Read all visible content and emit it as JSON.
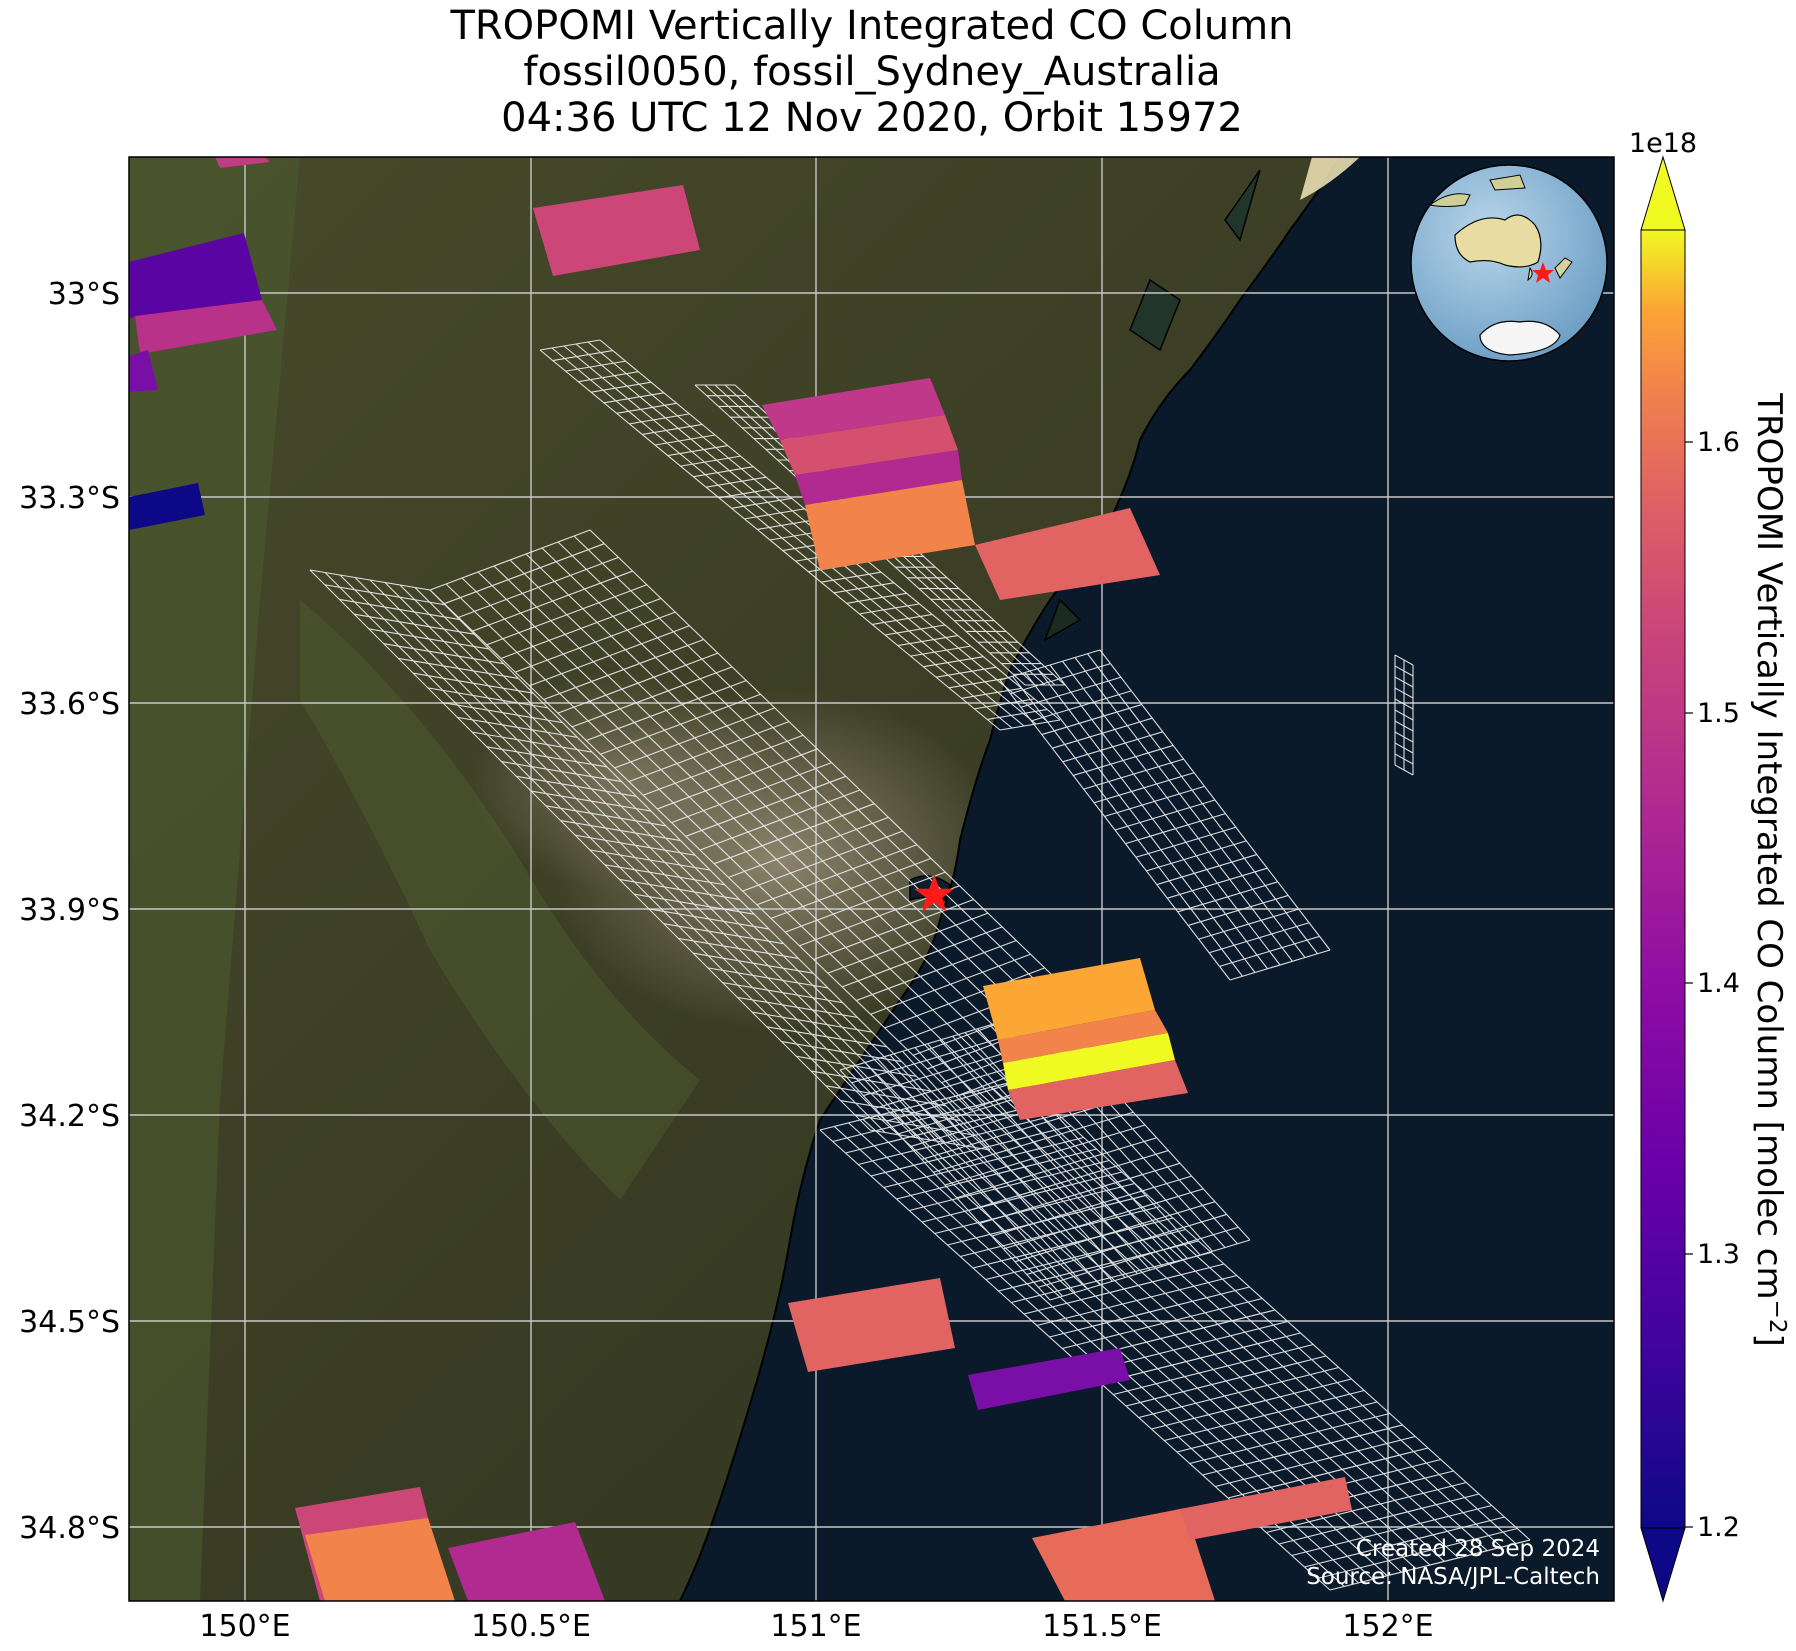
{
  "title": {
    "line1": "TROPOMI Vertically Integrated CO Column",
    "line2": "fossil0050, fossil_Sydney_Australia",
    "line3": "04:36 UTC 12 Nov 2020, Orbit 15972"
  },
  "map": {
    "lon_ticks": [
      "150°E",
      "150.5°E",
      "151°E",
      "151.5°E",
      "152°E"
    ],
    "lat_ticks": [
      "33°S",
      "33.3°S",
      "33.6°S",
      "33.9°S",
      "34.2°S",
      "34.5°S",
      "34.8°S"
    ],
    "lon_range": [
      149.8,
      152.4
    ],
    "lat_range": [
      -34.9,
      -32.8
    ],
    "grid": true,
    "target_marker": "red-star",
    "target_location": {
      "lon": 151.21,
      "lat": -33.87
    },
    "inset": "orthographic-globe-australia"
  },
  "colorbar": {
    "label": "TROPOMI Vertically Integrated CO Column [molec cm",
    "label_exp": "−2",
    "label_end": "]",
    "multiplier": "1e18",
    "ticks": [
      "1.2",
      "1.3",
      "1.4",
      "1.5",
      "1.6"
    ],
    "colormap": "plasma",
    "range": [
      1.18,
      1.68
    ],
    "extend": "both"
  },
  "credits": {
    "created": "Created 28 Sep 2024",
    "source": "Source: NASA/JPL-Caltech"
  },
  "colors": {
    "ocean": "#0b1a2a",
    "land": "#3a3a22",
    "grid": "#c8c8c8",
    "marker": "#ff1a1a"
  }
}
